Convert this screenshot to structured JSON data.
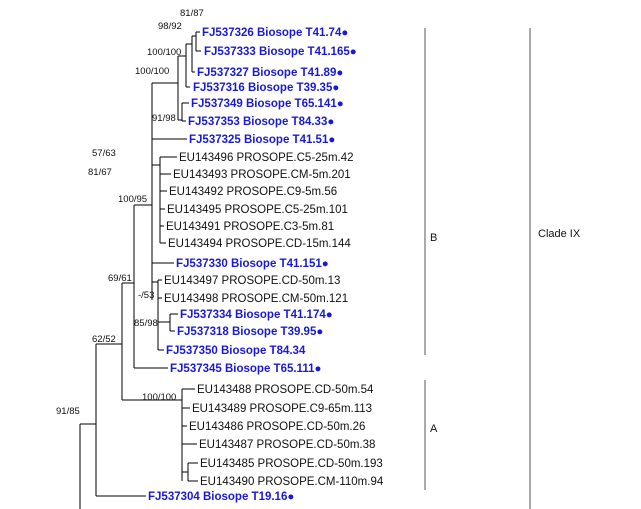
{
  "tips": [
    {
      "id": "t1",
      "label": "FJ537326 Biosope T41.74●",
      "style": "blue"
    },
    {
      "id": "t2",
      "label": "FJ537333 Biosope T41.165●",
      "style": "blue"
    },
    {
      "id": "t3",
      "label": "FJ537327 Biosope T41.89●",
      "style": "blue"
    },
    {
      "id": "t4",
      "label": "FJ537316 Biosope T39.35●",
      "style": "blue"
    },
    {
      "id": "t5",
      "label": "FJ537349 Biosope T65.141●",
      "style": "blue"
    },
    {
      "id": "t6",
      "label": "FJ537353 Biosope T84.33●",
      "style": "blue"
    },
    {
      "id": "t7",
      "label": "FJ537325 Biosope T41.51●",
      "style": "blue"
    },
    {
      "id": "t8",
      "label": "EU143496 PROSOPE.C5-25m.42",
      "style": "black"
    },
    {
      "id": "t9",
      "label": "EU143493 PROSOPE.CM-5m.201",
      "style": "black"
    },
    {
      "id": "t10",
      "label": "EU143492 PROSOPE.C9-5m.56",
      "style": "black"
    },
    {
      "id": "t11",
      "label": "EU143495 PROSOPE.C5-25m.101",
      "style": "black"
    },
    {
      "id": "t12",
      "label": "EU143491 PROSOPE.C3-5m.81",
      "style": "black"
    },
    {
      "id": "t13",
      "label": "EU143494 PROSOPE.CD-15m.144",
      "style": "black"
    },
    {
      "id": "t14",
      "label": "FJ537330 Biosope T41.151●",
      "style": "blue"
    },
    {
      "id": "t15",
      "label": "EU143497 PROSOPE.CD-50m.13",
      "style": "black"
    },
    {
      "id": "t16",
      "label": "EU143498 PROSOPE.CM-50m.121",
      "style": "black"
    },
    {
      "id": "t17",
      "label": "FJ537334 Biosope T41.174●",
      "style": "blue"
    },
    {
      "id": "t18",
      "label": "FJ537318 Biosope T39.95●",
      "style": "blue"
    },
    {
      "id": "t19",
      "label": "FJ537350 Biosope T84.34",
      "style": "blue"
    },
    {
      "id": "t20",
      "label": "FJ537345 Biosope T65.111●",
      "style": "blue"
    },
    {
      "id": "t21",
      "label": "EU143488 PROSOPE.CD-50m.54",
      "style": "black"
    },
    {
      "id": "t22",
      "label": "EU143489 PROSOPE.C9-65m.113",
      "style": "black"
    },
    {
      "id": "t23",
      "label": "EU143486 PROSOPE.CD-50m.26",
      "style": "black"
    },
    {
      "id": "t24",
      "label": "EU143487 PROSOPE.CD-50m.38",
      "style": "black"
    },
    {
      "id": "t25",
      "label": "EU143485 PROSOPE.CD-50m.193",
      "style": "black"
    },
    {
      "id": "t26",
      "label": "EU143490 PROSOPE.CM-110m.94",
      "style": "black"
    },
    {
      "id": "t27",
      "label": "FJ537304 Biosope T19.16●",
      "style": "blue"
    }
  ],
  "support_values": {
    "s_81_87": "81/87",
    "s_98_92": "98/92",
    "s_100_100_a": "100/100",
    "s_100_100_b": "100/100",
    "s_91_98": "91/98",
    "s_57_63": "57/63",
    "s_81_67": "81/67",
    "s_100_95": "100/95",
    "s_69_61": "69/61",
    "s_dash_53": "-/53",
    "s_85_98": "85/98",
    "s_62_52": "62/52",
    "s_100_100_c": "100/100",
    "s_91_85": "91/85"
  },
  "clades": {
    "b": "B",
    "a": "A",
    "ix": "Clade IX"
  },
  "colors": {
    "highlight_tip": "#1a1ad6",
    "default_tip": "#111111"
  }
}
